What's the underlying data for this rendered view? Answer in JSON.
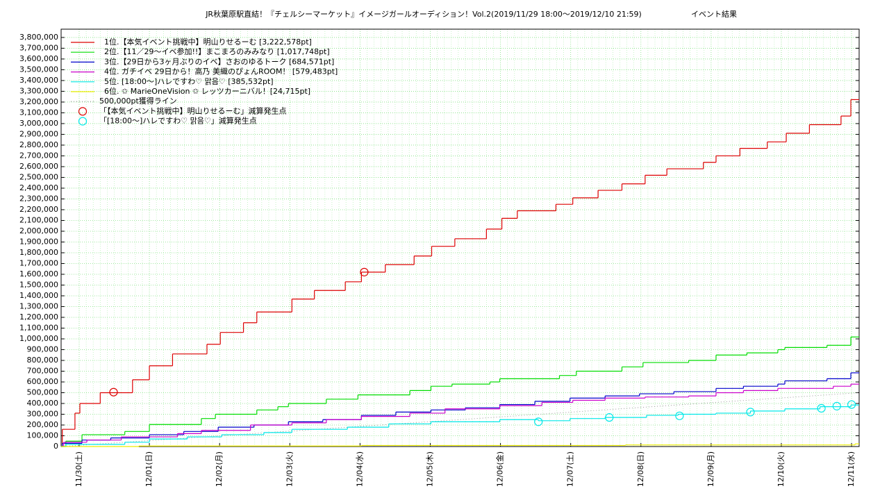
{
  "chart_data": {
    "type": "step",
    "title": "JR秋葉原駅直結！『チェルシーマーケット』イメージガールオーディション！Vol.2(2019/11/29 18:00〜2019/12/10 21:59)",
    "subtitle": "イベント結果",
    "xlim": [
      0.743,
      12.108
    ],
    "xticks": [
      {
        "value": 1,
        "label": "11/30(土)"
      },
      {
        "value": 2,
        "label": "12/01(日)"
      },
      {
        "value": 3,
        "label": "12/02(月)"
      },
      {
        "value": 4,
        "label": "12/03(火)"
      },
      {
        "value": 5,
        "label": "12/04(水)"
      },
      {
        "value": 6,
        "label": "12/05(木)"
      },
      {
        "value": 7,
        "label": "12/06(金)"
      },
      {
        "value": 8,
        "label": "12/07(土)"
      },
      {
        "value": 9,
        "label": "12/08(日)"
      },
      {
        "value": 10,
        "label": "12/09(月)"
      },
      {
        "value": 11,
        "label": "12/10(火)"
      },
      {
        "value": 12,
        "label": "12/11(水)"
      }
    ],
    "ylim": [
      0,
      3877000
    ],
    "yticks": [
      0,
      {
        "value": 100000,
        "label": "100,000"
      },
      {
        "value": 200000,
        "label": "200,000"
      },
      {
        "value": 300000,
        "label": "300,000"
      },
      {
        "value": 400000,
        "label": "400,000"
      },
      {
        "value": 500000,
        "label": "500,000"
      },
      {
        "value": 600000,
        "label": "600,000"
      },
      {
        "value": 700000,
        "label": "700,000"
      },
      {
        "value": 800000,
        "label": "800,000"
      },
      {
        "value": 900000,
        "label": "900,000"
      },
      {
        "value": 1000000,
        "label": "1,000,000"
      },
      {
        "value": 1100000,
        "label": "1,100,000"
      },
      {
        "value": 1200000,
        "label": "1,200,000"
      },
      {
        "value": 1300000,
        "label": "1,300,000"
      },
      {
        "value": 1400000,
        "label": "1,400,000"
      },
      {
        "value": 1500000,
        "label": "1,500,000"
      },
      {
        "value": 1600000,
        "label": "1,600,000"
      },
      {
        "value": 1700000,
        "label": "1,700,000"
      },
      {
        "value": 1800000,
        "label": "1,800,000"
      },
      {
        "value": 1900000,
        "label": "1,900,000"
      },
      {
        "value": 2000000,
        "label": "2,000,000"
      },
      {
        "value": 2100000,
        "label": "2,100,000"
      },
      {
        "value": 2200000,
        "label": "2,200,000"
      },
      {
        "value": 2300000,
        "label": "2,300,000"
      },
      {
        "value": 2400000,
        "label": "2,400,000"
      },
      {
        "value": 2500000,
        "label": "2,500,000"
      },
      {
        "value": 2600000,
        "label": "2,600,000"
      },
      {
        "value": 2700000,
        "label": "2,700,000"
      },
      {
        "value": 2800000,
        "label": "2,800,000"
      },
      {
        "value": 2900000,
        "label": "2,900,000"
      },
      {
        "value": 3000000,
        "label": "3,000,000"
      },
      {
        "value": 3100000,
        "label": "3,100,000"
      },
      {
        "value": 3200000,
        "label": "3,200,000"
      },
      {
        "value": 3300000,
        "label": "3,300,000"
      },
      {
        "value": 3400000,
        "label": "3,400,000"
      },
      {
        "value": 3500000,
        "label": "3,500,000"
      },
      {
        "value": 3600000,
        "label": "3,600,000"
      },
      {
        "value": 3700000,
        "label": "3,700,000"
      },
      {
        "value": 3800000,
        "label": "3,800,000"
      }
    ],
    "grid": true,
    "minor_grid_per_tick": 10,
    "legend": "upper left",
    "series": [
      {
        "name": "1位.【本気イベント挑戦中】明山りせるーむ [3,222,578pt]",
        "color": "#dd0000",
        "style": "step",
        "x": [
          0.74,
          0.76,
          0.94,
          1.01,
          1.3,
          1.76,
          2.0,
          2.33,
          2.82,
          3.01,
          3.34,
          3.53,
          4.03,
          4.35,
          4.79,
          5.02,
          5.36,
          5.77,
          6.02,
          6.35,
          6.8,
          7.02,
          7.24,
          7.79,
          8.03,
          8.39,
          8.73,
          9.06,
          9.37,
          9.89,
          10.07,
          10.41,
          10.8,
          11.07,
          11.4,
          11.85,
          11.99
        ],
        "values": [
          0,
          160000,
          310000,
          400000,
          500000,
          620000,
          750000,
          860000,
          950000,
          1060000,
          1150000,
          1250000,
          1370000,
          1450000,
          1530000,
          1620000,
          1690000,
          1770000,
          1860000,
          1930000,
          2020000,
          2120000,
          2190000,
          2250000,
          2310000,
          2380000,
          2440000,
          2520000,
          2580000,
          2640000,
          2700000,
          2770000,
          2830000,
          2910000,
          2990000,
          3070000,
          3222578
        ]
      },
      {
        "name": "2位.【11／29〜イベ参加!!】まこまろのみみなり [1,017,748pt]",
        "color": "#00dd00",
        "style": "step",
        "x": [
          0.74,
          0.81,
          1.04,
          1.65,
          2.0,
          2.74,
          2.94,
          3.53,
          3.83,
          3.98,
          4.52,
          4.97,
          5.71,
          6.01,
          6.31,
          6.85,
          6.99,
          7.84,
          8.08,
          8.73,
          9.03,
          9.68,
          10.07,
          10.51,
          10.95,
          11.05,
          11.65,
          11.99
        ],
        "values": [
          0,
          50000,
          110000,
          140000,
          205000,
          260000,
          300000,
          340000,
          370000,
          400000,
          440000,
          480000,
          520000,
          560000,
          580000,
          600000,
          630000,
          660000,
          700000,
          740000,
          780000,
          800000,
          850000,
          870000,
          900000,
          920000,
          940000,
          1017748
        ]
      },
      {
        "name": "3位.【29日から3ヶ月ぶりのイベ】さおのゆるトーク [684,571pt]",
        "color": "#0000cc",
        "style": "step",
        "x": [
          0.74,
          0.76,
          1.04,
          1.45,
          2.0,
          2.49,
          2.98,
          3.49,
          3.98,
          4.47,
          5.02,
          5.51,
          6.01,
          6.5,
          6.99,
          7.49,
          7.99,
          8.49,
          8.98,
          9.47,
          10.07,
          10.46,
          10.95,
          11.05,
          11.65,
          11.99
        ],
        "values": [
          0,
          30000,
          60000,
          80000,
          110000,
          140000,
          180000,
          200000,
          230000,
          250000,
          290000,
          320000,
          340000,
          360000,
          390000,
          420000,
          450000,
          470000,
          490000,
          510000,
          540000,
          560000,
          580000,
          610000,
          630000,
          684571
        ]
      },
      {
        "name": "4位. ガチイベ 29日から！高乃 美織のぴょんROOM！ [579,483pt]",
        "color": "#cc00cc",
        "style": "step",
        "x": [
          0.74,
          0.78,
          1.11,
          1.6,
          2.4,
          2.74,
          3.44,
          4.03,
          4.52,
          5.02,
          5.71,
          6.21,
          6.99,
          7.59,
          8.03,
          8.49,
          9.06,
          9.68,
          10.07,
          10.46,
          10.95,
          11.74,
          11.99
        ],
        "values": [
          0,
          40000,
          60000,
          90000,
          120000,
          150000,
          200000,
          220000,
          250000,
          280000,
          310000,
          350000,
          380000,
          410000,
          430000,
          450000,
          460000,
          470000,
          500000,
          520000,
          540000,
          560000,
          579483
        ]
      },
      {
        "name": "5位. [18:00〜]ハレですわ♡ 맑음♡ [385,532pt]",
        "color": "#00e8e8",
        "style": "step",
        "x": [
          0.74,
          0.81,
          1.65,
          2.0,
          2.54,
          3.03,
          3.63,
          4.03,
          4.82,
          5.41,
          6.01,
          6.99,
          7.54,
          7.99,
          8.49,
          9.08,
          9.53,
          10.07,
          10.56,
          11.05,
          11.55,
          11.99
        ],
        "values": [
          0,
          20000,
          40000,
          70000,
          90000,
          110000,
          130000,
          160000,
          180000,
          210000,
          230000,
          250000,
          240000,
          260000,
          270000,
          290000,
          300000,
          310000,
          330000,
          350000,
          370000,
          385532
        ]
      },
      {
        "name": "6位. ✩ MarieOneVision ✩ レッツカーニバル！[24,715pt]",
        "color": "#eeee00",
        "style": "step",
        "x": [
          0.74,
          1.85,
          5.02,
          8.78,
          12.05
        ],
        "values": [
          0,
          5000,
          10000,
          15000,
          24715
        ]
      },
      {
        "name": "500,000pt獲得ライン",
        "color": "#999999",
        "style": "dotted",
        "x": [
          0.743,
          12.108
        ],
        "values": [
          0,
          500000
        ]
      },
      {
        "name": "「【本気イベント挑戦中】明山りせるーむ」減算発生点",
        "color": "#dd0000",
        "style": "points",
        "x": [
          1.49,
          5.06
        ],
        "values": [
          505000,
          1620000
        ]
      },
      {
        "name": "「[18:00〜]ハレですわ♡ 맑음♡」減算発生点",
        "color": "#00e8e8",
        "style": "points",
        "x": [
          7.54,
          8.55,
          9.55,
          10.56,
          11.57,
          11.79,
          12.0
        ],
        "values": [
          230000,
          270000,
          285000,
          320000,
          355000,
          375000,
          390000
        ]
      }
    ]
  }
}
